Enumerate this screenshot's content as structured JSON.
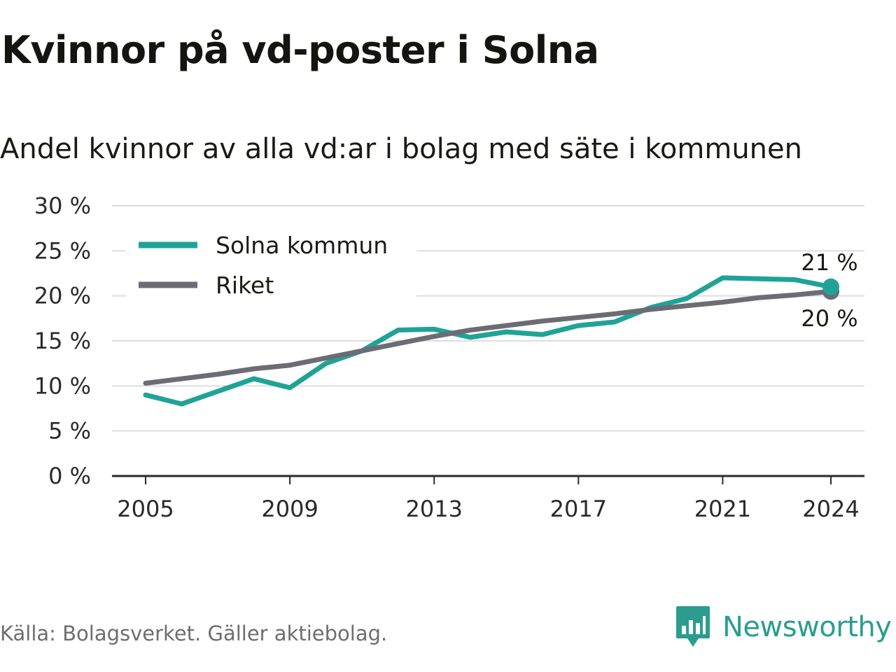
{
  "title": "Kvinnor på vd-poster i Solna",
  "subtitle": "Andel kvinnor av alla vd:ar i bolag med säte i kommunen",
  "source": "Källa: Bolagsverket. Gäller aktiebolag.",
  "brand": {
    "name": "Newsworthy",
    "icon": "newsworthy-logo-icon",
    "color": "#2a9d8f"
  },
  "chart_data": {
    "type": "line",
    "x": [
      2005,
      2006,
      2007,
      2008,
      2009,
      2010,
      2011,
      2012,
      2013,
      2014,
      2015,
      2016,
      2017,
      2018,
      2019,
      2020,
      2021,
      2022,
      2023,
      2024
    ],
    "series": [
      {
        "name": "Solna kommun",
        "color": "#1fa396",
        "values": [
          9.0,
          8.0,
          9.4,
          10.8,
          9.8,
          12.5,
          13.9,
          16.2,
          16.3,
          15.4,
          16.0,
          15.7,
          16.7,
          17.1,
          18.7,
          19.7,
          22.0,
          21.9,
          21.8,
          21.0
        ],
        "end_label": "21 %"
      },
      {
        "name": "Riket",
        "color": "#6d6b73",
        "values": [
          10.3,
          10.8,
          11.3,
          11.9,
          12.3,
          13.1,
          13.9,
          14.7,
          15.5,
          16.2,
          16.7,
          17.2,
          17.6,
          18.0,
          18.5,
          18.9,
          19.3,
          19.8,
          20.1,
          20.5
        ],
        "end_label": "20 %"
      }
    ],
    "yticks": [
      "0 %",
      "5 %",
      "10 %",
      "15 %",
      "20 %",
      "25 %",
      "30 %"
    ],
    "ytick_values": [
      0,
      5,
      10,
      15,
      20,
      25,
      30
    ],
    "xticks": [
      2005,
      2009,
      2013,
      2017,
      2021,
      2024
    ],
    "ylim": [
      0,
      30
    ],
    "xlim": [
      2005,
      2024
    ],
    "grid": true,
    "legend": "top-left"
  }
}
